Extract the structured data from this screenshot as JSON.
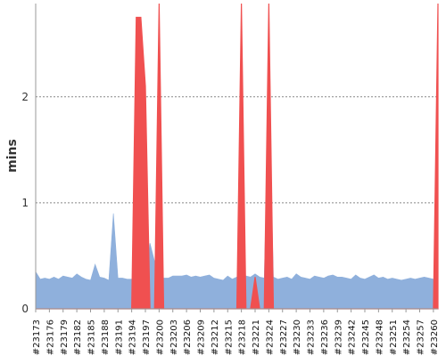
{
  "chart_data": {
    "type": "area",
    "ylabel": "mins",
    "ylim": [
      0,
      2.88
    ],
    "y_ticks": [
      "0",
      "1",
      "2"
    ],
    "grid": true,
    "grid_axis": "y",
    "legend": "none",
    "x_tick_labels": [
      "#23173",
      "#23176",
      "#23179",
      "#23182",
      "#23185",
      "#23188",
      "#23191",
      "#23194",
      "#23197",
      "#23200",
      "#23203",
      "#23206",
      "#23209",
      "#23212",
      "#23215",
      "#23218",
      "#23221",
      "#23224",
      "#23227",
      "#23230",
      "#23233",
      "#23236",
      "#23239",
      "#23242",
      "#23245",
      "#23248",
      "#23251",
      "#23254",
      "#23257",
      "#23260"
    ],
    "colors": {
      "series_a": "#8fb0dc",
      "series_b": "#f05050",
      "grid": "#888888",
      "axis": "#999999"
    },
    "series": [
      {
        "x": [
          23173,
          23174,
          23175,
          23176,
          23177,
          23178,
          23179,
          23180,
          23181,
          23182,
          23183,
          23184,
          23185,
          23186,
          23187,
          23188,
          23189,
          23190,
          23191,
          23192,
          23193,
          23194,
          23195,
          23196,
          23197,
          23198,
          23199,
          23200,
          23201,
          23202,
          23203,
          23204,
          23205,
          23206,
          23207,
          23208,
          23209,
          23210,
          23211,
          23212,
          23213,
          23214,
          23215,
          23216,
          23217,
          23218,
          23219,
          23220,
          23221,
          23222,
          23223,
          23224,
          23225,
          23226,
          23227,
          23228,
          23229,
          23230,
          23231,
          23232,
          23233,
          23234,
          23235,
          23236,
          23237,
          23238,
          23239,
          23240,
          23241,
          23242,
          23243,
          23244,
          23245,
          23246,
          23247,
          23248,
          23249,
          23250,
          23251,
          23252,
          23253,
          23254,
          23255,
          23256,
          23257,
          23258,
          23259,
          23260,
          23261
        ],
        "values": [
          0.35,
          0.28,
          0.29,
          0.28,
          0.3,
          0.28,
          0.31,
          0.3,
          0.29,
          0.33,
          0.3,
          0.28,
          0.27,
          0.42,
          0.3,
          0.29,
          0.27,
          0.9,
          0.29,
          0.29,
          0.28,
          0.28,
          0.3,
          0.3,
          0.29,
          0.62,
          0.45,
          0.29,
          0.29,
          0.29,
          0.31,
          0.31,
          0.31,
          0.32,
          0.3,
          0.31,
          0.3,
          0.31,
          0.32,
          0.29,
          0.28,
          0.27,
          0.31,
          0.28,
          0.3,
          0.32,
          0.31,
          0.3,
          0.33,
          0.3,
          0.29,
          2.05,
          0.3,
          0.28,
          0.29,
          0.3,
          0.28,
          0.33,
          0.3,
          0.29,
          0.28,
          0.31,
          0.3,
          0.29,
          0.31,
          0.32,
          0.3,
          0.3,
          0.29,
          0.28,
          0.32,
          0.29,
          0.28,
          0.3,
          0.32,
          0.29,
          0.3,
          0.28,
          0.29,
          0.28,
          0.27,
          0.28,
          0.29,
          0.28,
          0.29,
          0.3,
          0.29,
          0.28,
          0.31
        ]
      },
      {
        "x": [
          23173,
          23174,
          23175,
          23176,
          23177,
          23178,
          23179,
          23180,
          23181,
          23182,
          23183,
          23184,
          23185,
          23186,
          23187,
          23188,
          23189,
          23190,
          23191,
          23192,
          23193,
          23194,
          23195,
          23196,
          23197,
          23198,
          23199,
          23200,
          23201,
          23202,
          23203,
          23204,
          23205,
          23206,
          23207,
          23208,
          23209,
          23210,
          23211,
          23212,
          23213,
          23214,
          23215,
          23216,
          23217,
          23218,
          23219,
          23220,
          23221,
          23222,
          23223,
          23224,
          23225,
          23226,
          23227,
          23228,
          23229,
          23230,
          23231,
          23232,
          23233,
          23234,
          23235,
          23236,
          23237,
          23238,
          23239,
          23240,
          23241,
          23242,
          23243,
          23244,
          23245,
          23246,
          23247,
          23248,
          23249,
          23250,
          23251,
          23252,
          23253,
          23254,
          23255,
          23256,
          23257,
          23258,
          23259,
          23260,
          23261
        ],
        "values": [
          0,
          0,
          0,
          0,
          0,
          0,
          0,
          0,
          0,
          0,
          0,
          0,
          0,
          0,
          0,
          0,
          0,
          0,
          0,
          0,
          0,
          0,
          2.75,
          2.75,
          2.1,
          0,
          0,
          2.88,
          0,
          0,
          0,
          0,
          0,
          0,
          0,
          0,
          0,
          0,
          0,
          0,
          0,
          0,
          0,
          0,
          0,
          2.88,
          0,
          0,
          0.3,
          0,
          0,
          2.88,
          0,
          0,
          0,
          0,
          0,
          0,
          0,
          0,
          0,
          0,
          0,
          0,
          0,
          0,
          0,
          0,
          0,
          0,
          0,
          0,
          0,
          0,
          0,
          0,
          0,
          0,
          0,
          0,
          0,
          0,
          0,
          0,
          0,
          0,
          0,
          0,
          2.88
        ]
      }
    ]
  }
}
